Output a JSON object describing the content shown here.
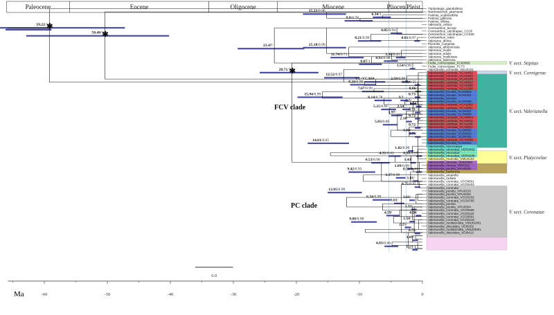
{
  "eras": [
    {
      "name": "Paleocene",
      "from": -66,
      "to": -56
    },
    {
      "name": "Eocene",
      "from": -56,
      "to": -33.9
    },
    {
      "name": "Oligocene",
      "from": -33.9,
      "to": -23
    },
    {
      "name": "Miocene",
      "from": -23,
      "to": -5.3
    },
    {
      "name": "Pliocene",
      "from": -5.3,
      "to": -2.6
    },
    {
      "name": "Pleist.",
      "from": -2.6,
      "to": 0
    }
  ],
  "axis": {
    "label": "Ma",
    "ticks": [
      -60,
      -50,
      -40,
      -30,
      -20,
      -10,
      0
    ],
    "range": [
      -66,
      0
    ]
  },
  "scale_bar": {
    "label": "6.0",
    "length": 6
  },
  "clades": {
    "fcv": "FCV clade",
    "pc": "PC clade"
  },
  "sections": [
    {
      "name": "V. sect. Stipitae",
      "color": "#d7edc8",
      "rows": [
        17,
        17
      ]
    },
    {
      "name": "V. sect. Cornigerae",
      "color": "#cfd6ec",
      "rows": [
        20,
        20
      ]
    },
    {
      "name": "V. sect. Valerianella",
      "color": "#3fb3a0",
      "rows": [
        21,
        43
      ]
    },
    {
      "name": "V. sect. Platycoelae",
      "color": "#ffff99",
      "rows": [
        45,
        48
      ]
    },
    {
      "name": "",
      "color": "#b9a35c",
      "rows": [
        49,
        51
      ]
    },
    {
      "name": "V. sect. Coronatae",
      "color": "#c8c8c8",
      "rows": [
        56,
        71
      ]
    },
    {
      "name": "",
      "color": "#f6d4f2",
      "rows": [
        72,
        75
      ]
    }
  ],
  "tips": [
    "Triplostegia_glandulifera",
    "Nardostachys_jatamansi",
    "Patrinia_scabiosifolia",
    "Patrinia_gibbosa",
    "Patrinia_villosa",
    "Valeriana_celtica",
    "Centranthus_lecoqii",
    "Centranthus_calcitrapae_CC26",
    "Centranthus_calcitrapae_CC539",
    "Centranthus_ruber",
    "Valeriana_dioica",
    "Plectritis_congesta",
    "Valeriana_albonervata",
    "Valeriana_rivalis",
    "Valeriana_edulis",
    "Valeriana_hoolkinsia",
    "Valeriana_tuberosa",
    "Fedia_cornucopiae_FC00080",
    "Fedia_cornucopiae_FC73",
    "Valerianella_echinata_VEU0101",
    "Valerianella_carinata_VCA0402",
    "Valerianella_carinata_VCA0403",
    "Valerianella_carinata_VCA0104",
    "Valerianella_carinata_VCA0302",
    "Valerianella_carinata_VCA0208",
    "Valerianella_carinata_VCA1006",
    "Valerianella_locusta_VLO0303",
    "Valerianella_locusta_VLO0101",
    "Valerianella_locusta",
    "Valerianella_locusta_VLO0609",
    "Valerianella_carinata_VCA1002",
    "Valerianella_carinata_VCA0801",
    "Valerianella_locusta_VLO0201",
    "Valerianella_locusta_VLO0909",
    "Valerianella_carinata_VCA0603",
    "Valerianella_carinata_VCA0610",
    "Valerianella_carinata_VCA1106",
    "Valerianella_carinata_VCA0202",
    "Valerianella_locusta_VLO0605",
    "Valerianella_locusta_VLO0410",
    "Valerianella_locusta_VLO0702",
    "Valerianella_carinata_VCA0908",
    "Valerianella_locusta_VLO0401",
    "Valerianella_microcarpa",
    "Valerianella_eriocarpa_VER0402",
    "Valerianella_eriocarpa",
    "Valerianella_eriocarpa_VER0208",
    "Valerianella_muricata_VMU0102",
    "Valerianella_dentata_VDE0303",
    "Valerianella_rimosa_VRI0101",
    "Valerianella_pumila_VPU0202",
    "Valerianella_fusiformis",
    "Valerianella_amarella",
    "Valerianella_radiata",
    "Valerianella_coronata_VCO0801",
    "Valerianella_coronata_VCO0404",
    "Valerianella_coronata",
    "Valerianella_pumila_VPU0103",
    "Valerianella_pumila_VPU0402",
    "Valerianella_coronata_VCO0102",
    "Valerianella_coronata_VCO0705",
    "Valerianella_pumila",
    "Valerianella_pumila_VPU0304",
    "Valerianella_coronata_VCO0606",
    "Valerianella_coronata_VCO0119",
    "Valerianella_coronata_VCO0601",
    "Valerianella_coronata_VCO0218",
    "Valerianella_multidentata_VMU02001",
    "Valerianella_discoidea_VDI0202",
    "Valerianella_multidentata_VMU03001",
    "Valerianella_discoidea_VDI0412"
  ],
  "node_labels": [
    {
      "age": "59.22",
      "sup": "/1",
      "x": -59.2,
      "row": 5.5,
      "star": true
    },
    {
      "age": "50.40",
      "sup": "/1",
      "x": -50.4,
      "row": 8,
      "star": true
    },
    {
      "age": "15.23",
      "sup": "/0.96",
      "x": -15.2,
      "row": 1.2
    },
    {
      "age": "9.9",
      "sup": "/0.78",
      "x": -9.9,
      "row": 3.3
    },
    {
      "age": "6.34",
      "sup": "/1",
      "x": -6.3,
      "row": 2.2
    },
    {
      "age": "23.47",
      "sup": "/",
      "x": -23.5,
      "row": 12
    },
    {
      "age": "4.05",
      "sup": "/0.94",
      "x": -4.05,
      "row": 7.2
    },
    {
      "age": "8.21",
      "sup": "/0.99",
      "x": -8.2,
      "row": 9.6
    },
    {
      "age": "0.81",
      "sup": "/0.97",
      "x": -0.8,
      "row": 9.6
    },
    {
      "age": "15.18",
      "sup": "/0.99",
      "x": -15.2,
      "row": 11.7
    },
    {
      "age": "11.74",
      "sup": "/0.71",
      "x": -11.7,
      "row": 14.8
    },
    {
      "age": "3.36",
      "sup": "/0.41",
      "x": -3.36,
      "row": 14.8
    },
    {
      "age": "4.93",
      "sup": "/0.98",
      "x": -4.9,
      "row": 15.9
    },
    {
      "age": "8.07",
      "sup": "/1",
      "x": -8.07,
      "row": 16.9
    },
    {
      "age": "20.71",
      "sup": "/1",
      "x": -20.7,
      "row": 19.5,
      "star": true
    },
    {
      "age": "1.54",
      "sup": "/0.99",
      "x": -1.54,
      "row": 18.3
    },
    {
      "age": "12.52",
      "sup": "/0.97",
      "x": -12.5,
      "row": 21.1
    },
    {
      "age": "2.50",
      "sup": "/0.99",
      "x": -2.5,
      "row": 22.4
    },
    {
      "age": "V1+VCA04",
      "sup": "",
      "x": -7.4,
      "row": 22.4
    },
    {
      "age": "9.24",
      "sup": "/0.99",
      "x": -9.2,
      "row": 23.3
    },
    {
      "age": "0.75",
      "sup": "/0.55",
      "x": -0.75,
      "row": 23.4
    },
    {
      "age": "7.67",
      "sup": "/0.99",
      "x": -7.7,
      "row": 25.4
    },
    {
      "age": "0.66",
      "sup": "/",
      "x": -0.66,
      "row": 25.4
    },
    {
      "age": "15.94",
      "sup": "/0.99",
      "x": -15.9,
      "row": 27.2
    },
    {
      "age": "0.73",
      "sup": "/",
      "x": -0.73,
      "row": 27.2
    },
    {
      "age": "6.14",
      "sup": "/0.78",
      "x": -6.1,
      "row": 28.2
    },
    {
      "age": "V2",
      "sup": "",
      "x": -2.8,
      "row": 28.2
    },
    {
      "age": "1.5",
      "sup": "/",
      "x": -1.5,
      "row": 29.2
    },
    {
      "age": "0.54",
      "sup": "/",
      "x": -0.54,
      "row": 30.1
    },
    {
      "age": "5.25",
      "sup": "/0.01",
      "x": -5.25,
      "row": 31.0
    },
    {
      "age": "2.54",
      "sup": "/",
      "x": -2.54,
      "row": 31.0
    },
    {
      "age": "0.71",
      "sup": "/",
      "x": -0.71,
      "row": 32.0
    },
    {
      "age": "3.97",
      "sup": "/",
      "x": -3.97,
      "row": 32.9
    },
    {
      "age": "0.72",
      "sup": "/",
      "x": -0.72,
      "row": 33.9
    },
    {
      "age": "2.10",
      "sup": "/",
      "x": -2.1,
      "row": 34.8
    },
    {
      "age": "5.03",
      "sup": "/0.00",
      "x": -5.03,
      "row": 35.8
    },
    {
      "age": "0.72",
      "sup": "/",
      "x": -0.72,
      "row": 36.8
    },
    {
      "age": "1.60",
      "sup": "/",
      "x": -1.6,
      "row": 38.5
    },
    {
      "age": "0.70",
      "sup": "/",
      "x": -0.7,
      "row": 39.6
    },
    {
      "age": "14.61",
      "sup": "/0.65",
      "x": -14.6,
      "row": 41.6
    },
    {
      "age": "1.82",
      "sup": "/0.99",
      "x": -1.82,
      "row": 44.0
    },
    {
      "age": "4.31",
      "sup": "/0.42",
      "x": -4.31,
      "row": 45.6
    },
    {
      "age": "0.50",
      "sup": "/0.57",
      "x": -0.5,
      "row": 45.6
    },
    {
      "age": "6.53",
      "sup": "/0.98",
      "x": -6.5,
      "row": 47.7
    },
    {
      "age": "1.43",
      "sup": "/",
      "x": -1.43,
      "row": 47.7
    },
    {
      "age": "1.89",
      "sup": "/0.99",
      "x": -1.89,
      "row": 49.6
    },
    {
      "age": "9.42",
      "sup": "/0.93",
      "x": -9.4,
      "row": 50.6
    },
    {
      "age": "0.53",
      "sup": "/0.46",
      "x": -0.53,
      "row": 50.6
    },
    {
      "age": "3.37",
      "sup": "/0.99",
      "x": -3.37,
      "row": 52.4
    },
    {
      "age": "1.01",
      "sup": "/",
      "x": -1.01,
      "row": 53.4
    },
    {
      "age": "0.75",
      "sup": "/0.05",
      "x": -0.75,
      "row": 55.3
    },
    {
      "age": "12.05",
      "sup": "/0.99",
      "x": -12.05,
      "row": 57.0
    },
    {
      "age": "6.34",
      "sup": "/0.99",
      "x": -6.34,
      "row": 59.3
    },
    {
      "age": "1.61",
      "sup": "/",
      "x": -1.61,
      "row": 59.4
    },
    {
      "age": "3.61",
      "sup": "/",
      "x": -3.61,
      "row": 60.4
    },
    {
      "age": "1.31",
      "sup": "/",
      "x": -1.31,
      "row": 62.3
    },
    {
      "age": "4.59",
      "sup": "/",
      "x": -4.59,
      "row": 64.2
    },
    {
      "age": "0.58",
      "sup": "/",
      "x": -0.58,
      "row": 64.2
    },
    {
      "age": "9.08",
      "sup": "/0.98",
      "x": -9.08,
      "row": 66.2
    },
    {
      "age": "1.58",
      "sup": "/",
      "x": -1.58,
      "row": 66.1
    },
    {
      "age": "2.25",
      "sup": "/",
      "x": -2.25,
      "row": 67.9
    },
    {
      "age": "0.75",
      "sup": "/",
      "x": -0.75,
      "row": 69.8
    },
    {
      "age": "1.09",
      "sup": "/",
      "x": -1.09,
      "row": 71.9
    },
    {
      "age": "4.83",
      "sup": "/0.66",
      "x": -4.83,
      "row": 73.8
    },
    {
      "age": "1.13",
      "sup": "/",
      "x": -1.13,
      "row": 74.9
    }
  ]
}
